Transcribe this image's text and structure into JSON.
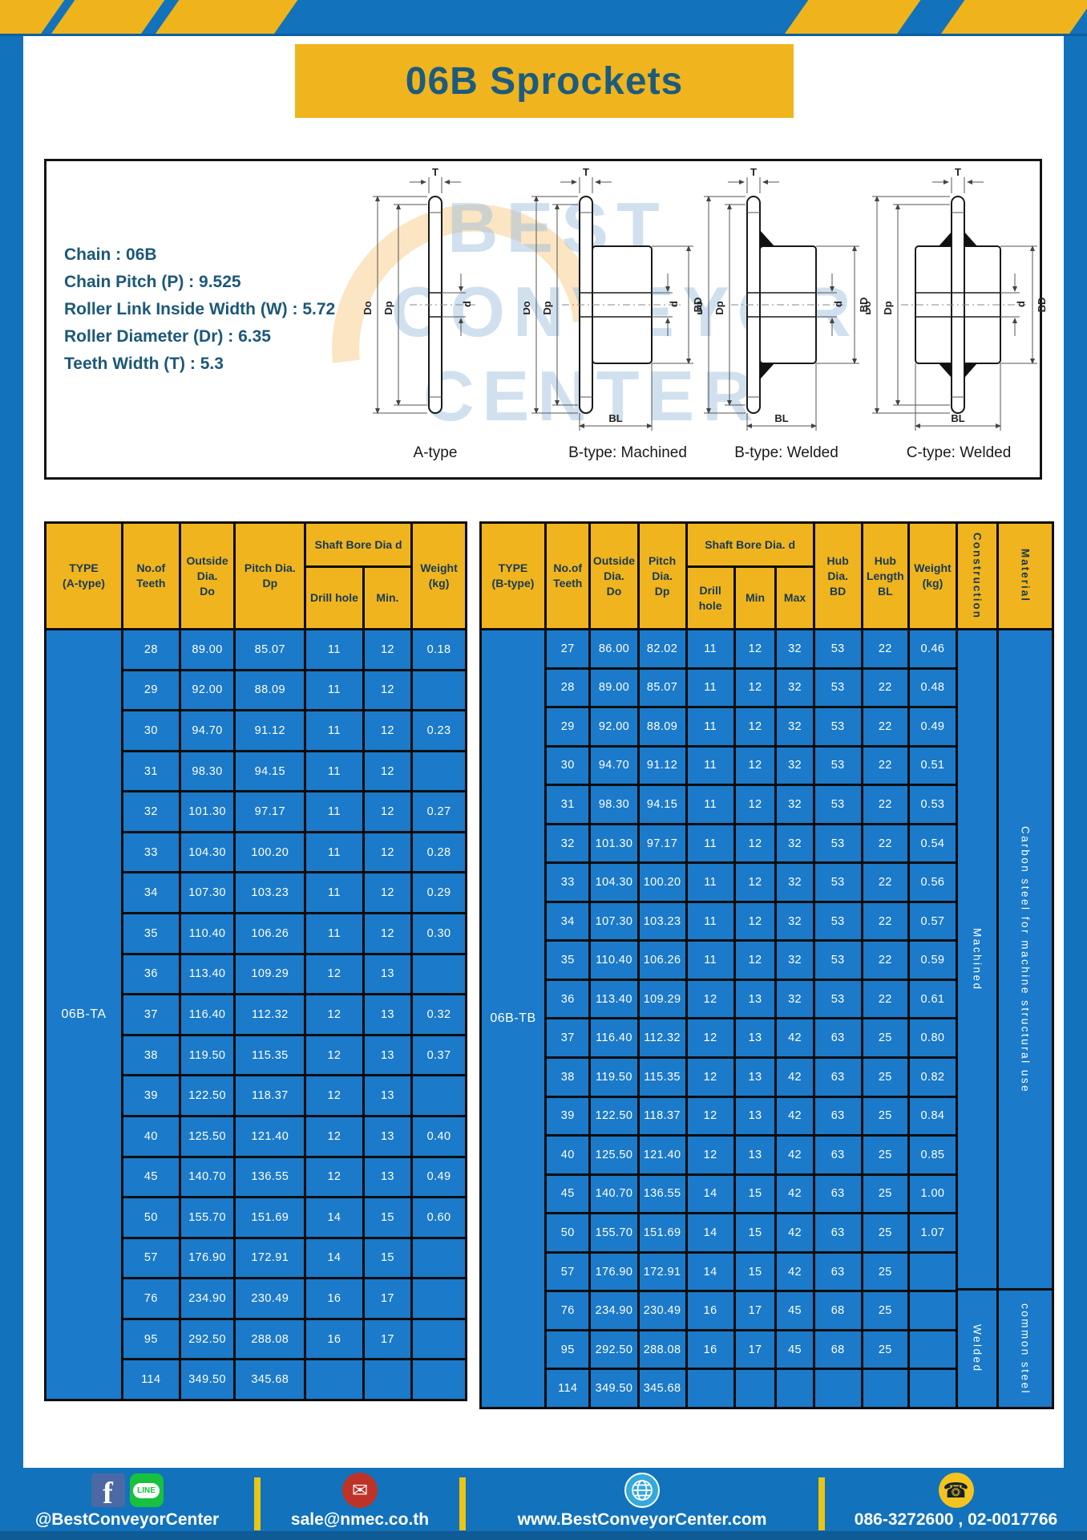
{
  "title": "06B Sprockets",
  "specs": {
    "sep": " : ",
    "rows": [
      {
        "label": "Chain",
        "value": "06B"
      },
      {
        "label": "Chain Pitch (P)",
        "value": "9.525"
      },
      {
        "label": "Roller Link Inside Width (W)",
        "value": "5.72"
      },
      {
        "label": "Roller Diameter (Dr)",
        "value": "6.35"
      },
      {
        "label": "Teeth Width (T)",
        "value": "5.3"
      }
    ]
  },
  "drawings": {
    "watermark_lines": [
      "BEST",
      "CONVEYOR",
      "CENTER"
    ],
    "dims": {
      "t": "T",
      "do": "Do",
      "dp": "Dp",
      "d": "d",
      "bd": "BD",
      "bl": "BL"
    },
    "items": [
      {
        "caption": "A-type"
      },
      {
        "caption": "B-type: Machined"
      },
      {
        "caption": "B-type: Welded"
      },
      {
        "caption": "C-type: Welded"
      }
    ]
  },
  "table_a": {
    "type_label": "06B-TA",
    "head": {
      "type": "TYPE\n(A-type)",
      "teeth": "No.of\nTeeth",
      "outside": "Outside\nDia.\nDo",
      "pitch": "Pitch Dia.\nDp",
      "shaft": "Shaft Bore Dia d",
      "drill": "Drill hole",
      "min": "Min.",
      "weight": "Weight\n(kg)"
    },
    "rows": [
      [
        "28",
        "89.00",
        "85.07",
        "11",
        "12",
        "0.18"
      ],
      [
        "29",
        "92.00",
        "88.09",
        "11",
        "12",
        ""
      ],
      [
        "30",
        "94.70",
        "91.12",
        "11",
        "12",
        "0.23"
      ],
      [
        "31",
        "98.30",
        "94.15",
        "11",
        "12",
        ""
      ],
      [
        "32",
        "101.30",
        "97.17",
        "11",
        "12",
        "0.27"
      ],
      [
        "33",
        "104.30",
        "100.20",
        "11",
        "12",
        "0.28"
      ],
      [
        "34",
        "107.30",
        "103.23",
        "11",
        "12",
        "0.29"
      ],
      [
        "35",
        "110.40",
        "106.26",
        "11",
        "12",
        "0.30"
      ],
      [
        "36",
        "113.40",
        "109.29",
        "12",
        "13",
        ""
      ],
      [
        "37",
        "116.40",
        "112.32",
        "12",
        "13",
        "0.32"
      ],
      [
        "38",
        "119.50",
        "115.35",
        "12",
        "13",
        "0.37"
      ],
      [
        "39",
        "122.50",
        "118.37",
        "12",
        "13",
        ""
      ],
      [
        "40",
        "125.50",
        "121.40",
        "12",
        "13",
        "0.40"
      ],
      [
        "45",
        "140.70",
        "136.55",
        "12",
        "13",
        "0.49"
      ],
      [
        "50",
        "155.70",
        "151.69",
        "14",
        "15",
        "0.60"
      ],
      [
        "57",
        "176.90",
        "172.91",
        "14",
        "15",
        ""
      ],
      [
        "76",
        "234.90",
        "230.49",
        "16",
        "17",
        ""
      ],
      [
        "95",
        "292.50",
        "288.08",
        "16",
        "17",
        ""
      ],
      [
        "114",
        "349.50",
        "345.68",
        "",
        "",
        ""
      ]
    ]
  },
  "table_b": {
    "type_label": "06B-TB",
    "head": {
      "type": "TYPE\n(B-type)",
      "teeth": "No.of\nTeeth",
      "outside": "Outside\nDia.\nDo",
      "pitch": "Pitch\nDia.\nDp",
      "shaft": "Shaft Bore Dia. d",
      "drill": "Drill hole",
      "min": "Min",
      "max": "Max",
      "hub_dia": "Hub\nDia.\nBD",
      "hub_len": "Hub\nLength\nBL",
      "weight": "Weight\n(kg)",
      "construction": "Construction",
      "material": "Material"
    },
    "construction": {
      "machined": "Machined",
      "welded": "Welded"
    },
    "material": {
      "machined": "Carbon steel for machine structural use",
      "welded": "common steel"
    },
    "rows": [
      [
        "27",
        "86.00",
        "82.02",
        "11",
        "12",
        "32",
        "53",
        "22",
        "0.46"
      ],
      [
        "28",
        "89.00",
        "85.07",
        "11",
        "12",
        "32",
        "53",
        "22",
        "0.48"
      ],
      [
        "29",
        "92.00",
        "88.09",
        "11",
        "12",
        "32",
        "53",
        "22",
        "0.49"
      ],
      [
        "30",
        "94.70",
        "91.12",
        "11",
        "12",
        "32",
        "53",
        "22",
        "0.51"
      ],
      [
        "31",
        "98.30",
        "94.15",
        "11",
        "12",
        "32",
        "53",
        "22",
        "0.53"
      ],
      [
        "32",
        "101.30",
        "97.17",
        "11",
        "12",
        "32",
        "53",
        "22",
        "0.54"
      ],
      [
        "33",
        "104.30",
        "100.20",
        "11",
        "12",
        "32",
        "53",
        "22",
        "0.56"
      ],
      [
        "34",
        "107.30",
        "103.23",
        "11",
        "12",
        "32",
        "53",
        "22",
        "0.57"
      ],
      [
        "35",
        "110.40",
        "106.26",
        "11",
        "12",
        "32",
        "53",
        "22",
        "0.59"
      ],
      [
        "36",
        "113.40",
        "109.29",
        "12",
        "13",
        "32",
        "53",
        "22",
        "0.61"
      ],
      [
        "37",
        "116.40",
        "112.32",
        "12",
        "13",
        "42",
        "63",
        "25",
        "0.80"
      ],
      [
        "38",
        "119.50",
        "115.35",
        "12",
        "13",
        "42",
        "63",
        "25",
        "0.82"
      ],
      [
        "39",
        "122.50",
        "118.37",
        "12",
        "13",
        "42",
        "63",
        "25",
        "0.84"
      ],
      [
        "40",
        "125.50",
        "121.40",
        "12",
        "13",
        "42",
        "63",
        "25",
        "0.85"
      ],
      [
        "45",
        "140.70",
        "136.55",
        "14",
        "15",
        "42",
        "63",
        "25",
        "1.00"
      ],
      [
        "50",
        "155.70",
        "151.69",
        "14",
        "15",
        "42",
        "63",
        "25",
        "1.07"
      ],
      [
        "57",
        "176.90",
        "172.91",
        "14",
        "15",
        "42",
        "63",
        "25",
        ""
      ],
      [
        "76",
        "234.90",
        "230.49",
        "16",
        "17",
        "45",
        "68",
        "25",
        ""
      ],
      [
        "95",
        "292.50",
        "288.08",
        "16",
        "17",
        "45",
        "68",
        "25",
        ""
      ],
      [
        "114",
        "349.50",
        "345.68",
        "",
        "",
        "",
        "",
        "",
        ""
      ]
    ]
  },
  "footer": {
    "facebook_glyph": "f",
    "line_label": "LINE",
    "glyphs": {
      "mail": "✉",
      "phone": "☎"
    },
    "sections": [
      {
        "text": "@BestConveyorCenter"
      },
      {
        "text": "sale@nmec.co.th"
      },
      {
        "text": "www.BestConveyorCenter.com"
      },
      {
        "text": "086-3272600 , 02-0017766"
      }
    ]
  },
  "colors": {
    "frame_blue": "#1272bb",
    "cell_blue": "#1b7ac9",
    "accent_yellow": "#f0b41e",
    "ink_teal": "#1c5878",
    "grid_black": "#0d0d0d"
  }
}
